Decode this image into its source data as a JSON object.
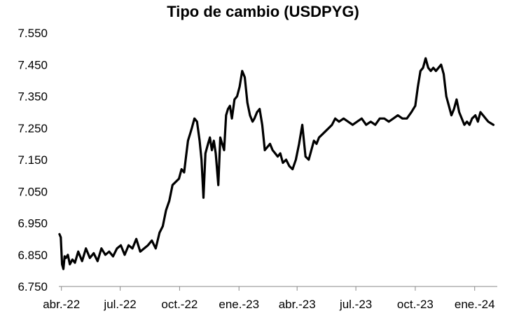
{
  "chart_data": {
    "type": "line",
    "title": "Tipo de cambio (USDPYG)",
    "xlabel": "",
    "ylabel": "",
    "ylim": [
      6750,
      7550
    ],
    "yticks": [
      "6.750",
      "6.850",
      "6.950",
      "7.050",
      "7.150",
      "7.250",
      "7.350",
      "7.450",
      "7.550"
    ],
    "xticks": [
      "abr.-22",
      "jul.-22",
      "oct.-22",
      "ene.-23",
      "abr.-23",
      "jul.-23",
      "oct.-23",
      "ene.-24"
    ],
    "grid": false,
    "legend": "none",
    "line_color": "#000000",
    "series": [
      {
        "x": [
          "2022-03-29",
          "2022-03-31",
          "2022-04-02",
          "2022-04-04",
          "2022-04-06",
          "2022-04-08",
          "2022-04-11",
          "2022-04-14",
          "2022-04-18",
          "2022-04-22",
          "2022-04-27",
          "2022-05-03",
          "2022-05-09",
          "2022-05-15",
          "2022-05-21",
          "2022-05-27",
          "2022-06-02",
          "2022-06-08",
          "2022-06-14",
          "2022-06-20",
          "2022-06-26",
          "2022-07-02",
          "2022-07-08",
          "2022-07-14",
          "2022-07-20",
          "2022-07-26",
          "2022-08-01",
          "2022-08-07",
          "2022-08-13",
          "2022-08-19",
          "2022-08-25",
          "2022-08-31",
          "2022-09-05",
          "2022-09-10",
          "2022-09-15",
          "2022-09-20",
          "2022-09-25",
          "2022-09-30",
          "2022-10-04",
          "2022-10-08",
          "2022-10-11",
          "2022-10-14",
          "2022-10-17",
          "2022-10-20",
          "2022-10-24",
          "2022-10-28",
          "2022-11-01",
          "2022-11-04",
          "2022-11-07",
          "2022-11-10",
          "2022-11-14",
          "2022-11-17",
          "2022-11-20",
          "2022-11-23",
          "2022-11-26",
          "2022-11-30",
          "2022-12-03",
          "2022-12-06",
          "2022-12-09",
          "2022-12-12",
          "2022-12-15",
          "2022-12-18",
          "2022-12-21",
          "2022-12-25",
          "2022-12-29",
          "2023-01-02",
          "2023-01-06",
          "2023-01-10",
          "2023-01-14",
          "2023-01-18",
          "2023-01-22",
          "2023-01-25",
          "2023-01-29",
          "2023-02-02",
          "2023-02-06",
          "2023-02-10",
          "2023-02-14",
          "2023-02-18",
          "2023-02-22",
          "2023-02-26",
          "2023-03-02",
          "2023-03-06",
          "2023-03-10",
          "2023-03-15",
          "2023-03-20",
          "2023-03-25",
          "2023-03-30",
          "2023-04-04",
          "2023-04-09",
          "2023-04-14",
          "2023-04-19",
          "2023-04-23",
          "2023-04-27",
          "2023-05-01",
          "2023-05-05",
          "2023-05-10",
          "2023-05-15",
          "2023-05-20",
          "2023-05-25",
          "2023-05-30",
          "2023-06-05",
          "2023-06-12",
          "2023-06-19",
          "2023-06-26",
          "2023-07-03",
          "2023-07-10",
          "2023-07-17",
          "2023-07-24",
          "2023-07-31",
          "2023-08-07",
          "2023-08-14",
          "2023-08-21",
          "2023-08-28",
          "2023-09-04",
          "2023-09-11",
          "2023-09-18",
          "2023-09-25",
          "2023-10-01",
          "2023-10-05",
          "2023-10-09",
          "2023-10-13",
          "2023-10-17",
          "2023-10-21",
          "2023-10-25",
          "2023-10-29",
          "2023-11-02",
          "2023-11-06",
          "2023-11-10",
          "2023-11-14",
          "2023-11-18",
          "2023-11-22",
          "2023-11-26",
          "2023-11-30",
          "2023-12-04",
          "2023-12-08",
          "2023-12-12",
          "2023-12-16",
          "2023-12-20",
          "2023-12-24",
          "2023-12-28",
          "2024-01-02",
          "2024-01-06",
          "2024-01-10",
          "2024-01-14",
          "2024-01-18",
          "2024-01-22",
          "2024-01-26",
          "2024-01-30"
        ],
        "y": [
          6915,
          6905,
          6820,
          6805,
          6845,
          6840,
          6850,
          6820,
          6835,
          6825,
          6860,
          6830,
          6870,
          6840,
          6855,
          6830,
          6870,
          6850,
          6860,
          6845,
          6870,
          6880,
          6850,
          6880,
          6870,
          6900,
          6860,
          6870,
          6880,
          6895,
          6870,
          6920,
          6940,
          6990,
          7020,
          7070,
          7080,
          7090,
          7120,
          7110,
          7160,
          7210,
          7230,
          7250,
          7280,
          7270,
          7210,
          7150,
          7030,
          7170,
          7200,
          7220,
          7180,
          7210,
          7170,
          7070,
          7220,
          7200,
          7180,
          7290,
          7310,
          7320,
          7280,
          7340,
          7350,
          7380,
          7430,
          7410,
          7330,
          7290,
          7270,
          7280,
          7300,
          7310,
          7260,
          7180,
          7190,
          7200,
          7180,
          7170,
          7160,
          7170,
          7140,
          7150,
          7130,
          7120,
          7150,
          7200,
          7260,
          7160,
          7150,
          7180,
          7210,
          7200,
          7220,
          7230,
          7240,
          7250,
          7260,
          7280,
          7270,
          7280,
          7270,
          7260,
          7270,
          7280,
          7260,
          7270,
          7260,
          7280,
          7280,
          7270,
          7280,
          7290,
          7280,
          7280,
          7300,
          7320,
          7380,
          7430,
          7440,
          7470,
          7440,
          7430,
          7440,
          7430,
          7440,
          7450,
          7420,
          7350,
          7320,
          7290,
          7310,
          7340,
          7300,
          7280,
          7260,
          7270,
          7260,
          7280,
          7290,
          7270,
          7300,
          7290,
          7280,
          7270,
          7265,
          7260
        ]
      }
    ]
  }
}
